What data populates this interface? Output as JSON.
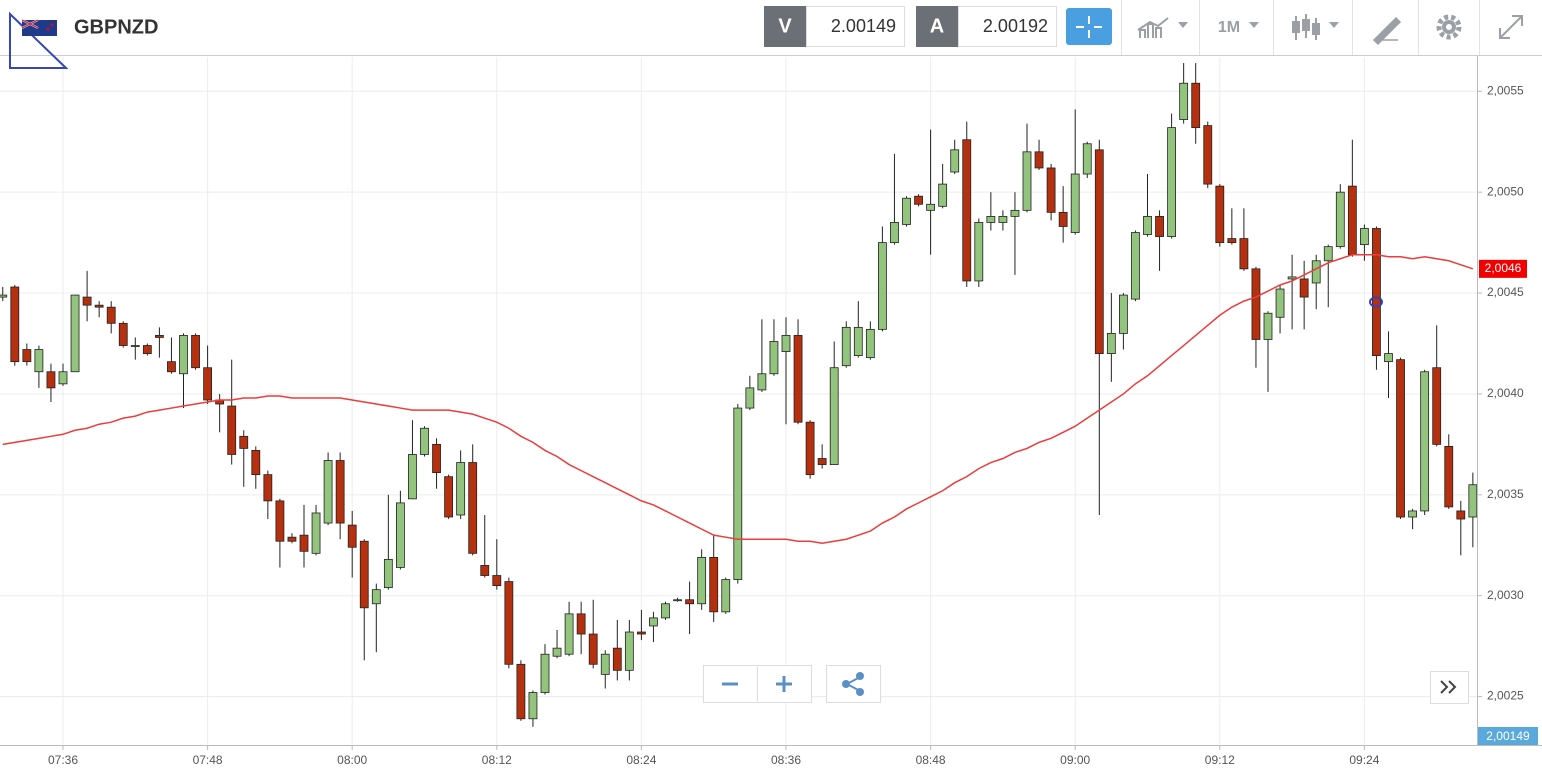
{
  "header": {
    "symbol": "GBPNZD",
    "bid_label": "V",
    "bid": "2.00149",
    "ask_label": "A",
    "ask": "2.00192",
    "timeframe": "1M"
  },
  "chart_data": {
    "type": "candlestick",
    "categories": [
      null,
      null,
      null,
      null,
      null,
      "07:36",
      null,
      null,
      null,
      null,
      null,
      null,
      null,
      null,
      null,
      null,
      null,
      "07:48",
      null,
      null,
      null,
      null,
      null,
      null,
      null,
      null,
      null,
      null,
      null,
      "08:00",
      null,
      null,
      null,
      null,
      null,
      null,
      null,
      null,
      null,
      null,
      null,
      "08:12",
      null,
      null,
      null,
      null,
      null,
      null,
      null,
      null,
      null,
      null,
      null,
      "08:24",
      null,
      null,
      null,
      null,
      null,
      null,
      null,
      null,
      null,
      null,
      null,
      "08:36",
      null,
      null,
      null,
      null,
      null,
      null,
      null,
      null,
      null,
      null,
      null,
      "08:48",
      null,
      null,
      null,
      null,
      null,
      null,
      null,
      null,
      null,
      null,
      null,
      "09:00",
      null,
      null,
      null,
      null,
      null,
      null,
      null,
      null,
      null,
      null,
      null,
      "09:12",
      null,
      null,
      null,
      null,
      null,
      null,
      null,
      null,
      null,
      null,
      null,
      "09:24",
      null,
      null,
      null,
      null,
      null,
      null,
      null,
      null,
      null
    ],
    "open": [
      2.00448,
      2.00453,
      2.00422,
      2.00411,
      2.00411,
      2.00405,
      2.00411,
      2.00448,
      2.00444,
      2.00443,
      2.00435,
      2.00424,
      2.00424,
      2.00429,
      2.00416,
      2.0041,
      2.00429,
      2.00413,
      2.00397,
      2.00394,
      2.00379,
      2.00372,
      2.0036,
      2.00347,
      2.00329,
      2.0033,
      2.00321,
      2.00336,
      2.00367,
      2.00335,
      2.00327,
      2.00296,
      2.00304,
      2.00314,
      2.00348,
      2.0037,
      2.00375,
      2.00359,
      2.0034,
      2.00366,
      2.00315,
      2.0031,
      2.00307,
      2.00266,
      2.00239,
      2.00252,
      2.0027,
      2.00271,
      2.00291,
      2.00281,
      2.00261,
      2.00274,
      2.00263,
      2.00282,
      2.00285,
      2.00289,
      2.00298,
      2.00298,
      2.00296,
      2.00319,
      2.00292,
      2.00308,
      2.00393,
      2.00402,
      2.0041,
      2.00421,
      2.00429,
      2.00386,
      2.00368,
      2.00365,
      2.00414,
      2.00419,
      2.00418,
      2.00432,
      2.00475,
      2.00484,
      2.00498,
      2.00491,
      2.00493,
      2.0051,
      2.00526,
      2.00456,
      2.00485,
      2.00485,
      2.00488,
      2.00491,
      2.0052,
      2.00512,
      2.0049,
      2.0048,
      2.00509,
      2.00521,
      2.0042,
      2.0043,
      2.00447,
      2.00479,
      2.00488,
      2.00478,
      2.00536,
      2.00554,
      2.00533,
      2.00503,
      2.00477,
      2.00477,
      2.00462,
      2.00427,
      2.00438,
      2.00457,
      2.00457,
      2.00455,
      2.00466,
      2.00473,
      2.00503,
      2.00474,
      2.00482,
      2.00416,
      2.00417,
      2.00339,
      2.00342,
      2.00413,
      2.00374,
      2.00342,
      2.00339
    ],
    "high": [
      2.00453,
      2.00454,
      2.00425,
      2.00424,
      2.00415,
      2.00415,
      2.00449,
      2.00461,
      2.00446,
      2.00446,
      2.00436,
      2.00428,
      2.00425,
      2.00433,
      2.00428,
      2.0043,
      2.0043,
      2.00424,
      2.004,
      2.00417,
      2.00382,
      2.00374,
      2.00362,
      2.00348,
      2.00331,
      2.00345,
      2.00345,
      2.00371,
      2.00371,
      2.00342,
      2.00328,
      2.00306,
      2.0035,
      2.00352,
      2.00387,
      2.00384,
      2.00378,
      2.0036,
      2.00372,
      2.00375,
      2.0034,
      2.00328,
      2.00309,
      2.00268,
      2.00253,
      2.00276,
      2.00283,
      2.00297,
      2.00297,
      2.00298,
      2.00273,
      2.00288,
      2.00288,
      2.00293,
      2.00292,
      2.00297,
      2.00299,
      2.00307,
      2.00323,
      2.0033,
      2.00309,
      2.00395,
      2.00409,
      2.00437,
      2.00437,
      2.00438,
      2.00437,
      2.00387,
      2.00375,
      2.00426,
      2.00436,
      2.00446,
      2.00436,
      2.00483,
      2.00519,
      2.00498,
      2.00499,
      2.00531,
      2.00514,
      2.00526,
      2.00535,
      2.00487,
      2.005,
      2.00491,
      2.005,
      2.00534,
      2.00526,
      2.00514,
      2.00503,
      2.00541,
      2.00525,
      2.00526,
      2.0045,
      2.0045,
      2.00481,
      2.00509,
      2.00491,
      2.00539,
      2.00564,
      2.00564,
      2.00535,
      2.00504,
      2.00492,
      2.00492,
      2.00463,
      2.00441,
      2.00454,
      2.00469,
      2.00466,
      2.00469,
      2.00474,
      2.00504,
      2.00526,
      2.00484,
      2.00483,
      2.00431,
      2.00418,
      2.00343,
      2.00412,
      2.00434,
      2.0038,
      2.00347,
      2.00361
    ],
    "low": [
      2.00446,
      2.00414,
      2.00414,
      2.00403,
      2.00396,
      2.00404,
      2.00411,
      2.00436,
      2.00438,
      2.0043,
      2.00423,
      2.00417,
      2.00419,
      2.00418,
      2.0041,
      2.00393,
      2.00412,
      2.00395,
      2.00381,
      2.00365,
      2.00354,
      2.00353,
      2.00338,
      2.00314,
      2.00326,
      2.00314,
      2.0032,
      2.00335,
      2.00328,
      2.00309,
      2.00268,
      2.00272,
      2.00303,
      2.00313,
      2.00348,
      2.00369,
      2.00353,
      2.00338,
      2.00338,
      2.0032,
      2.00309,
      2.00303,
      2.00264,
      2.00238,
      2.00235,
      2.00251,
      2.00269,
      2.0027,
      2.00271,
      2.00264,
      2.00254,
      2.00258,
      2.00258,
      2.00278,
      2.00277,
      2.00288,
      2.00297,
      2.00281,
      2.00293,
      2.00287,
      2.00291,
      2.00306,
      2.00392,
      2.00401,
      2.00409,
      2.00385,
      2.00385,
      2.00358,
      2.00363,
      2.00365,
      2.00413,
      2.00418,
      2.00417,
      2.00431,
      2.00474,
      2.00483,
      2.00493,
      2.00469,
      2.00492,
      2.00509,
      2.00453,
      2.00453,
      2.00481,
      2.00481,
      2.00459,
      2.0049,
      2.00511,
      2.00486,
      2.00475,
      2.00479,
      2.00507,
      2.0034,
      2.00406,
      2.00422,
      2.00446,
      2.00478,
      2.00461,
      2.00477,
      2.00534,
      2.00524,
      2.00502,
      2.00473,
      2.00474,
      2.00461,
      2.00413,
      2.00401,
      2.0043,
      2.00432,
      2.00432,
      2.00442,
      2.00443,
      2.00472,
      2.00468,
      2.00466,
      2.00412,
      2.00398,
      2.00338,
      2.00333,
      2.0034,
      2.00374,
      2.00343,
      2.0032,
      2.00324
    ],
    "close": [
      2.00449,
      2.00416,
      2.00416,
      2.00422,
      2.00403,
      2.00411,
      2.00449,
      2.00444,
      2.00443,
      2.00435,
      2.00424,
      2.00424,
      2.0042,
      2.00428,
      2.00411,
      2.00429,
      2.00413,
      2.00397,
      2.00395,
      2.0037,
      2.00373,
      2.0036,
      2.00347,
      2.00327,
      2.00327,
      2.00322,
      2.00341,
      2.00367,
      2.00336,
      2.00324,
      2.00294,
      2.00303,
      2.00318,
      2.00346,
      2.0037,
      2.00383,
      2.00361,
      2.00339,
      2.00366,
      2.00321,
      2.0031,
      2.00305,
      2.00266,
      2.00239,
      2.00252,
      2.00271,
      2.00274,
      2.00291,
      2.00281,
      2.00266,
      2.00271,
      2.00263,
      2.00282,
      2.00281,
      2.00289,
      2.00296,
      2.00298,
      2.00296,
      2.00319,
      2.00292,
      2.00308,
      2.00393,
      2.00403,
      2.0041,
      2.00426,
      2.00429,
      2.00386,
      2.0036,
      2.00365,
      2.00413,
      2.00433,
      2.00433,
      2.00432,
      2.00475,
      2.00485,
      2.00497,
      2.00494,
      2.00494,
      2.00504,
      2.00521,
      2.00456,
      2.00485,
      2.00488,
      2.00488,
      2.00491,
      2.0052,
      2.00512,
      2.0049,
      2.00483,
      2.00509,
      2.00524,
      2.0042,
      2.0043,
      2.00449,
      2.0048,
      2.00488,
      2.00478,
      2.00532,
      2.00554,
      2.00532,
      2.00504,
      2.00475,
      2.00475,
      2.00462,
      2.00427,
      2.0044,
      2.00452,
      2.00458,
      2.00448,
      2.00466,
      2.00473,
      2.005,
      2.00469,
      2.00482,
      2.00419,
      2.0042,
      2.00339,
      2.00342,
      2.00411,
      2.00375,
      2.00344,
      2.00338,
      2.00355
    ],
    "up_color": "#93c47d",
    "down_color": "#b5300e",
    "ma": {
      "color": "#ee3b3b",
      "values": [
        2.00375,
        2.00376,
        2.00377,
        2.00378,
        2.00379,
        2.0038,
        2.00382,
        2.00383,
        2.00385,
        2.00386,
        2.00388,
        2.00389,
        2.00391,
        2.00392,
        2.00393,
        2.00394,
        2.00395,
        2.00396,
        2.00397,
        2.00397,
        2.00398,
        2.00398,
        2.00399,
        2.00399,
        2.00398,
        2.00398,
        2.00398,
        2.00398,
        2.00398,
        2.00397,
        2.00396,
        2.00395,
        2.00394,
        2.00393,
        2.00392,
        2.00392,
        2.00392,
        2.00392,
        2.00391,
        2.0039,
        2.00388,
        2.00386,
        2.00383,
        2.00379,
        2.00376,
        2.00372,
        2.00369,
        2.00365,
        2.00362,
        2.00359,
        2.00356,
        2.00353,
        2.0035,
        2.00347,
        2.00345,
        2.00342,
        2.00339,
        2.00336,
        2.00333,
        2.0033,
        2.00329,
        2.00328,
        2.00328,
        2.00328,
        2.00328,
        2.00328,
        2.00327,
        2.00327,
        2.00326,
        2.00327,
        2.00328,
        2.0033,
        2.00332,
        2.00336,
        2.00339,
        2.00343,
        2.00346,
        2.00349,
        2.00352,
        2.00356,
        2.00359,
        2.00363,
        2.00366,
        2.00368,
        2.00371,
        2.00373,
        2.00376,
        2.00378,
        2.00381,
        2.00384,
        2.00388,
        2.00392,
        2.00396,
        2.004,
        2.00405,
        2.00409,
        2.00414,
        2.00419,
        2.00424,
        2.00429,
        2.00434,
        2.00439,
        2.00443,
        2.00446,
        2.00448,
        2.00451,
        2.00454,
        2.00456,
        2.00459,
        2.00462,
        2.00465,
        2.00467,
        2.00469,
        2.00469,
        2.00469,
        2.00468,
        2.00468,
        2.00467,
        2.00468,
        2.00467,
        2.00466,
        2.00464,
        2.00462
      ]
    },
    "ma_tag": "2,0046",
    "price_tag": "2,00149",
    "ylim": [
      2.00226,
      2.00567
    ],
    "yticks": [
      {
        "value": 2.0025,
        "label": "2,0025"
      },
      {
        "value": 2.003,
        "label": "2,0030"
      },
      {
        "value": 2.0035,
        "label": "2,0035"
      },
      {
        "value": 2.004,
        "label": "2,0040"
      },
      {
        "value": 2.0045,
        "label": "2,0045"
      },
      {
        "value": 2.005,
        "label": "2,0050"
      },
      {
        "value": 2.0055,
        "label": "2,0055"
      }
    ],
    "grid": true
  }
}
